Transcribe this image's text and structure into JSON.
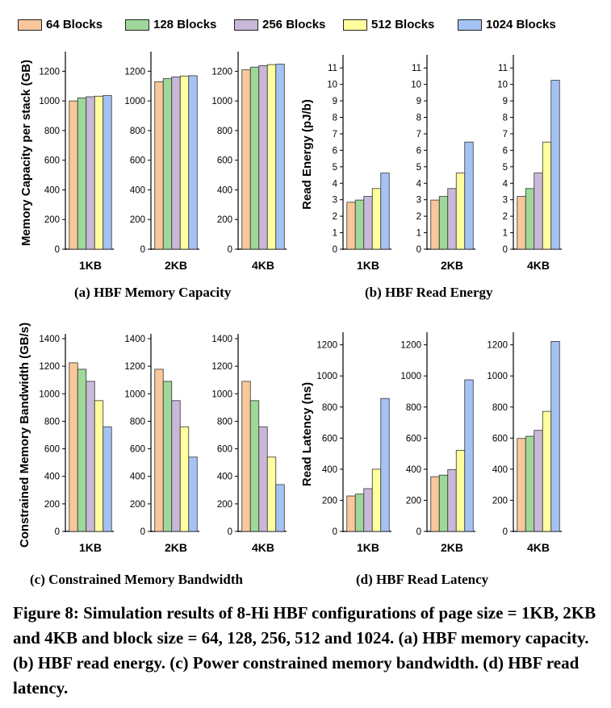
{
  "legend": [
    {
      "label": "64 Blocks",
      "color": "#f8c79a"
    },
    {
      "label": "128 Blocks",
      "color": "#9fd89a"
    },
    {
      "label": "256 Blocks",
      "color": "#c9b8d8"
    },
    {
      "label": "512 Blocks",
      "color": "#ffff9e"
    },
    {
      "label": "1024 Blocks",
      "color": "#a5c2f4"
    }
  ],
  "captions": {
    "a": "(a) HBF Memory Capacity",
    "b": "(b) HBF Read Energy",
    "c": "(c) Constrained Memory Bandwidth",
    "d": "(d) HBF Read Latency"
  },
  "figure_caption": "Figure 8: Simulation results of 8-Hi HBF configurations of page size = 1KB, 2KB and 4KB and block size = 64, 128, 256, 512 and 1024. (a) HBF memory capacity. (b) HBF read energy. (c) Power constrained memory bandwidth. (d) HBF read latency.",
  "chart_data": [
    {
      "id": "a",
      "type": "bar",
      "ylabel": "Memory Capacity per stack (GB)",
      "ylim": [
        0,
        1300
      ],
      "yticks": [
        0,
        200,
        400,
        600,
        800,
        1000,
        1200
      ],
      "panels": [
        "1KB",
        "2KB",
        "4KB"
      ],
      "series_names": [
        "64 Blocks",
        "128 Blocks",
        "256 Blocks",
        "512 Blocks",
        "1024 Blocks"
      ],
      "values": [
        [
          1000,
          1020,
          1028,
          1032,
          1036
        ],
        [
          1130,
          1150,
          1162,
          1168,
          1170
        ],
        [
          1210,
          1228,
          1238,
          1245,
          1248
        ]
      ]
    },
    {
      "id": "b",
      "type": "bar",
      "ylabel": "Read Energy (pJ/b)",
      "ylim": [
        0,
        11.5
      ],
      "yticks": [
        0,
        1,
        2,
        3,
        4,
        5,
        6,
        7,
        8,
        9,
        10,
        11
      ],
      "panels": [
        "1KB",
        "2KB",
        "4KB"
      ],
      "series_names": [
        "64 Blocks",
        "128 Blocks",
        "256 Blocks",
        "512 Blocks",
        "1024 Blocks"
      ],
      "values": [
        [
          2.85,
          2.98,
          3.2,
          3.68,
          4.62
        ],
        [
          2.98,
          3.2,
          3.68,
          4.62,
          6.5
        ],
        [
          3.2,
          3.68,
          4.62,
          6.5,
          10.25
        ]
      ]
    },
    {
      "id": "c",
      "type": "bar",
      "ylabel": "Constrained Memory Bandwidth (GB/s)",
      "ylim": [
        0,
        1400
      ],
      "yticks": [
        0,
        200,
        400,
        600,
        800,
        1000,
        1200,
        1400
      ],
      "panels": [
        "1KB",
        "2KB",
        "4KB"
      ],
      "series_names": [
        "64 Blocks",
        "128 Blocks",
        "256 Blocks",
        "512 Blocks",
        "1024 Blocks"
      ],
      "values": [
        [
          1225,
          1178,
          1090,
          950,
          760
        ],
        [
          1178,
          1090,
          950,
          760,
          540
        ],
        [
          1090,
          950,
          760,
          540,
          340
        ]
      ]
    },
    {
      "id": "d",
      "type": "bar",
      "ylabel": "Read Latency (ns)",
      "ylim": [
        0,
        1250
      ],
      "yticks": [
        0,
        200,
        400,
        600,
        800,
        1000,
        1200
      ],
      "panels": [
        "1KB",
        "2KB",
        "4KB"
      ],
      "series_names": [
        "64 Blocks",
        "128 Blocks",
        "256 Blocks",
        "512 Blocks",
        "1024 Blocks"
      ],
      "values": [
        [
          228,
          240,
          275,
          400,
          855
        ],
        [
          352,
          362,
          398,
          522,
          975
        ],
        [
          598,
          612,
          650,
          772,
          1222
        ]
      ]
    }
  ]
}
